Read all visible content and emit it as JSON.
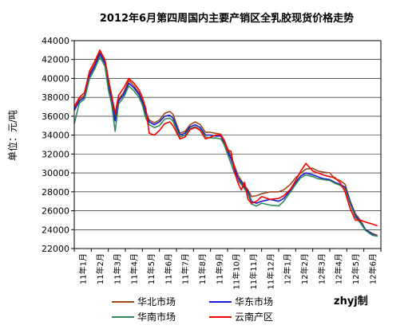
{
  "chart_data": {
    "type": "line",
    "title": "2012年6月第四周国内主要产销区全乳胶现货价格走势",
    "ylabel": "单位：元/吨",
    "ylim": [
      22000,
      44000
    ],
    "yticks": [
      "22000",
      "24000",
      "26000",
      "28000",
      "30000",
      "32000",
      "34000",
      "36000",
      "38000",
      "40000",
      "42000",
      "44000"
    ],
    "categories": [
      "11年1月",
      "11年2月",
      "11年3月",
      "11年4月",
      "11年5月",
      "11年6月",
      "11年7月",
      "11年8月",
      "11年9月",
      "11年10月",
      "11年11月",
      "11年12月",
      "12年1月",
      "12年2月",
      "12年3月",
      "12年4月",
      "12年5月",
      "12年6月"
    ],
    "grid": true,
    "legend_position": "bottom",
    "watermark": "zhyj制",
    "series": [
      {
        "name": "华北市场",
        "color": "#9C4A1A",
        "values": [
          [
            0,
            36800
          ],
          [
            0.3,
            37800
          ],
          [
            0.6,
            38200
          ],
          [
            0.9,
            40500
          ],
          [
            1.2,
            41500
          ],
          [
            1.5,
            42800
          ],
          [
            1.8,
            41800
          ],
          [
            2.0,
            39500
          ],
          [
            2.2,
            37800
          ],
          [
            2.4,
            35800
          ],
          [
            2.6,
            37800
          ],
          [
            2.9,
            38500
          ],
          [
            3.2,
            39800
          ],
          [
            3.5,
            39200
          ],
          [
            3.8,
            38500
          ],
          [
            4.0,
            37800
          ],
          [
            4.2,
            36500
          ],
          [
            4.4,
            35600
          ],
          [
            4.7,
            35300
          ],
          [
            5.0,
            35600
          ],
          [
            5.3,
            36300
          ],
          [
            5.6,
            36500
          ],
          [
            5.8,
            36200
          ],
          [
            6.0,
            35200
          ],
          [
            6.2,
            34200
          ],
          [
            6.5,
            34400
          ],
          [
            6.8,
            35100
          ],
          [
            7.1,
            35400
          ],
          [
            7.4,
            35100
          ],
          [
            7.7,
            34300
          ],
          [
            8.0,
            34300
          ],
          [
            8.3,
            34200
          ],
          [
            8.6,
            34100
          ],
          [
            8.8,
            33500
          ],
          [
            9.0,
            32600
          ],
          [
            9.2,
            31800
          ],
          [
            9.4,
            30800
          ],
          [
            9.6,
            29800
          ],
          [
            9.8,
            29200
          ],
          [
            10.0,
            28700
          ],
          [
            10.2,
            28200
          ],
          [
            10.4,
            27500
          ],
          [
            10.7,
            27600
          ],
          [
            11.0,
            27800
          ],
          [
            11.5,
            28000
          ],
          [
            12.0,
            28000
          ],
          [
            12.3,
            28200
          ],
          [
            12.7,
            28800
          ],
          [
            13.0,
            29500
          ],
          [
            13.3,
            30000
          ],
          [
            13.6,
            30400
          ],
          [
            14.0,
            30500
          ],
          [
            14.3,
            30200
          ],
          [
            14.6,
            30100
          ],
          [
            15.0,
            30000
          ],
          [
            15.3,
            29400
          ],
          [
            15.6,
            29200
          ],
          [
            15.9,
            28800
          ],
          [
            16.2,
            27000
          ],
          [
            16.5,
            25700
          ],
          [
            16.8,
            25000
          ],
          [
            17.1,
            24000
          ],
          [
            17.5,
            23600
          ],
          [
            17.8,
            23400
          ]
        ]
      },
      {
        "name": "华东市场",
        "color": "#1A1AD4",
        "values": [
          [
            0,
            36600
          ],
          [
            0.3,
            37600
          ],
          [
            0.6,
            38000
          ],
          [
            0.9,
            40300
          ],
          [
            1.2,
            41300
          ],
          [
            1.5,
            42600
          ],
          [
            1.8,
            41600
          ],
          [
            2.0,
            39200
          ],
          [
            2.2,
            37500
          ],
          [
            2.4,
            35500
          ],
          [
            2.6,
            37600
          ],
          [
            2.9,
            38300
          ],
          [
            3.2,
            39500
          ],
          [
            3.5,
            39000
          ],
          [
            3.8,
            38300
          ],
          [
            4.0,
            37500
          ],
          [
            4.2,
            36200
          ],
          [
            4.4,
            35400
          ],
          [
            4.7,
            35100
          ],
          [
            5.0,
            35400
          ],
          [
            5.3,
            36000
          ],
          [
            5.6,
            36100
          ],
          [
            5.8,
            35800
          ],
          [
            6.0,
            34900
          ],
          [
            6.2,
            34000
          ],
          [
            6.5,
            34200
          ],
          [
            6.8,
            34900
          ],
          [
            7.1,
            35100
          ],
          [
            7.4,
            34800
          ],
          [
            7.7,
            34000
          ],
          [
            8.0,
            34000
          ],
          [
            8.3,
            33900
          ],
          [
            8.6,
            33900
          ],
          [
            8.8,
            33200
          ],
          [
            9.0,
            32300
          ],
          [
            9.2,
            31500
          ],
          [
            9.4,
            30500
          ],
          [
            9.6,
            29500
          ],
          [
            9.8,
            29000
          ],
          [
            10.0,
            28500
          ],
          [
            10.2,
            28000
          ],
          [
            10.4,
            27000
          ],
          [
            10.7,
            26800
          ],
          [
            11.0,
            27000
          ],
          [
            11.5,
            27200
          ],
          [
            12.0,
            27000
          ],
          [
            12.3,
            27300
          ],
          [
            12.7,
            28200
          ],
          [
            13.0,
            29000
          ],
          [
            13.3,
            29700
          ],
          [
            13.6,
            30000
          ],
          [
            14.0,
            29800
          ],
          [
            14.3,
            29600
          ],
          [
            14.6,
            29400
          ],
          [
            15.0,
            29300
          ],
          [
            15.3,
            29000
          ],
          [
            15.6,
            28800
          ],
          [
            15.9,
            28500
          ],
          [
            16.2,
            26900
          ],
          [
            16.5,
            25500
          ],
          [
            16.8,
            24800
          ],
          [
            17.1,
            24000
          ],
          [
            17.5,
            23500
          ],
          [
            17.8,
            23300
          ]
        ]
      },
      {
        "name": "华南市场",
        "color": "#2E8B57",
        "values": [
          [
            0,
            35200
          ],
          [
            0.3,
            37400
          ],
          [
            0.6,
            37800
          ],
          [
            0.9,
            40000
          ],
          [
            1.2,
            41000
          ],
          [
            1.5,
            42300
          ],
          [
            1.8,
            41300
          ],
          [
            2.0,
            38800
          ],
          [
            2.2,
            37200
          ],
          [
            2.4,
            34400
          ],
          [
            2.6,
            37300
          ],
          [
            2.9,
            38000
          ],
          [
            3.2,
            39200
          ],
          [
            3.5,
            38700
          ],
          [
            3.8,
            38000
          ],
          [
            4.0,
            37200
          ],
          [
            4.2,
            35800
          ],
          [
            4.4,
            35100
          ],
          [
            4.7,
            34800
          ],
          [
            5.0,
            35000
          ],
          [
            5.3,
            35700
          ],
          [
            5.6,
            35800
          ],
          [
            5.8,
            35500
          ],
          [
            6.0,
            34600
          ],
          [
            6.2,
            33800
          ],
          [
            6.5,
            34000
          ],
          [
            6.8,
            34700
          ],
          [
            7.1,
            34900
          ],
          [
            7.4,
            34600
          ],
          [
            7.7,
            33800
          ],
          [
            8.0,
            33700
          ],
          [
            8.3,
            33700
          ],
          [
            8.6,
            33600
          ],
          [
            8.8,
            33000
          ],
          [
            9.0,
            32000
          ],
          [
            9.2,
            31000
          ],
          [
            9.4,
            30000
          ],
          [
            9.6,
            29200
          ],
          [
            9.8,
            28800
          ],
          [
            10.0,
            28300
          ],
          [
            10.2,
            27800
          ],
          [
            10.4,
            26700
          ],
          [
            10.7,
            26500
          ],
          [
            11.0,
            26800
          ],
          [
            11.5,
            26600
          ],
          [
            12.0,
            26500
          ],
          [
            12.3,
            27000
          ],
          [
            12.7,
            28000
          ],
          [
            13.0,
            28800
          ],
          [
            13.3,
            29500
          ],
          [
            13.6,
            29800
          ],
          [
            14.0,
            29600
          ],
          [
            14.3,
            29400
          ],
          [
            14.6,
            29300
          ],
          [
            15.0,
            29200
          ],
          [
            15.3,
            28900
          ],
          [
            15.6,
            28700
          ],
          [
            15.9,
            28300
          ],
          [
            16.2,
            26700
          ],
          [
            16.5,
            25300
          ],
          [
            16.8,
            24700
          ],
          [
            17.1,
            23900
          ],
          [
            17.5,
            23400
          ],
          [
            17.8,
            23300
          ]
        ]
      },
      {
        "name": "云南产区",
        "color": "#FF0000",
        "values": [
          [
            0,
            37000
          ],
          [
            0.3,
            38000
          ],
          [
            0.6,
            38500
          ],
          [
            0.9,
            40800
          ],
          [
            1.2,
            41800
          ],
          [
            1.5,
            43000
          ],
          [
            1.8,
            42000
          ],
          [
            2.0,
            40000
          ],
          [
            2.2,
            38200
          ],
          [
            2.4,
            36300
          ],
          [
            2.6,
            38200
          ],
          [
            2.9,
            39000
          ],
          [
            3.2,
            40000
          ],
          [
            3.5,
            39500
          ],
          [
            3.8,
            38800
          ],
          [
            4.0,
            38000
          ],
          [
            4.2,
            36800
          ],
          [
            4.4,
            34200
          ],
          [
            4.7,
            34000
          ],
          [
            5.0,
            34500
          ],
          [
            5.3,
            35200
          ],
          [
            5.6,
            35400
          ],
          [
            5.8,
            35000
          ],
          [
            6.0,
            34300
          ],
          [
            6.2,
            33600
          ],
          [
            6.5,
            33800
          ],
          [
            6.8,
            34600
          ],
          [
            7.1,
            34800
          ],
          [
            7.4,
            34500
          ],
          [
            7.7,
            33600
          ],
          [
            8.0,
            33800
          ],
          [
            8.3,
            34000
          ],
          [
            8.6,
            34000
          ],
          [
            8.8,
            33400
          ],
          [
            9.0,
            32400
          ],
          [
            9.2,
            32300
          ],
          [
            9.4,
            30200
          ],
          [
            9.6,
            29000
          ],
          [
            9.8,
            28200
          ],
          [
            10.0,
            29000
          ],
          [
            10.2,
            27200
          ],
          [
            10.4,
            26800
          ],
          [
            10.7,
            27000
          ],
          [
            11.0,
            27500
          ],
          [
            11.5,
            27200
          ],
          [
            12.0,
            27300
          ],
          [
            12.3,
            27600
          ],
          [
            12.7,
            28300
          ],
          [
            13.0,
            29200
          ],
          [
            13.3,
            30200
          ],
          [
            13.6,
            31000
          ],
          [
            14.0,
            30200
          ],
          [
            14.3,
            30000
          ],
          [
            14.6,
            29800
          ],
          [
            15.0,
            29600
          ],
          [
            15.3,
            29500
          ],
          [
            15.6,
            29000
          ],
          [
            15.9,
            28000
          ],
          [
            16.2,
            26200
          ],
          [
            16.5,
            25000
          ],
          [
            16.8,
            25000
          ],
          [
            17.1,
            24800
          ],
          [
            17.5,
            24600
          ],
          [
            17.8,
            24400
          ]
        ]
      }
    ]
  }
}
